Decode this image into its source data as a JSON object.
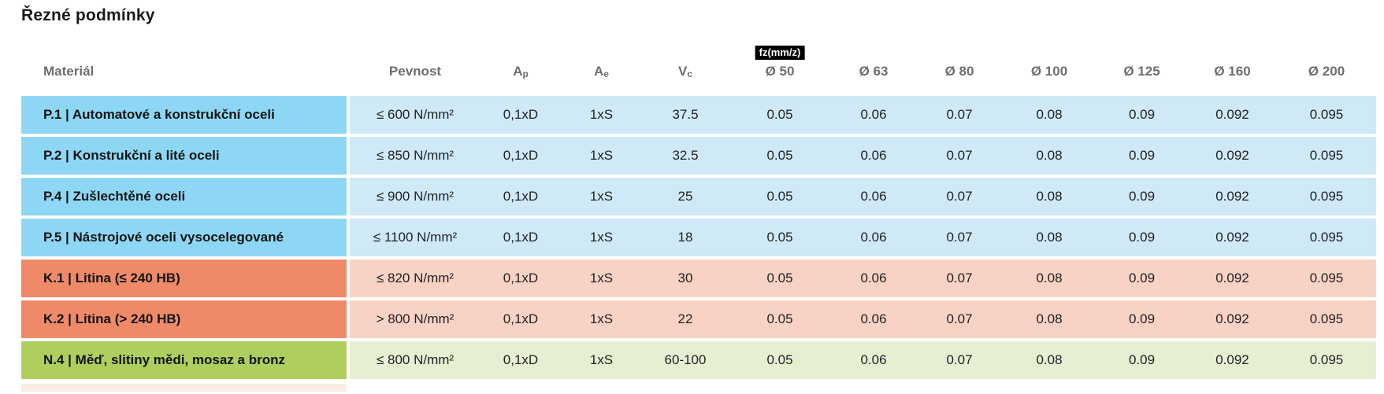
{
  "title": "Řezné podmínky",
  "colors": {
    "blue_dark": "#8ed7f4",
    "blue_light": "#cfe9f7",
    "orange_dark": "#ef8a69",
    "orange_light": "#f8d2c5",
    "green_dark": "#aecf5d",
    "green_light": "#e6efd2",
    "header_text": "#6d6e71",
    "badge_bg": "#000000",
    "badge_text": "#ffffff"
  },
  "table": {
    "badge": "fz(mm/z)",
    "columns": [
      {
        "key": "material",
        "label": "Materiál"
      },
      {
        "key": "pevnost",
        "label": "Pevnost"
      },
      {
        "key": "ap",
        "label": "A",
        "sub": "p"
      },
      {
        "key": "ae",
        "label": "A",
        "sub": "e"
      },
      {
        "key": "vc",
        "label": "V",
        "sub": "c"
      },
      {
        "key": "d50",
        "label": "Ø 50",
        "badge": true
      },
      {
        "key": "d63",
        "label": "Ø 63"
      },
      {
        "key": "d80",
        "label": "Ø 80"
      },
      {
        "key": "d100",
        "label": "Ø 100"
      },
      {
        "key": "d125",
        "label": "Ø 125"
      },
      {
        "key": "d160",
        "label": "Ø 160"
      },
      {
        "key": "d200",
        "label": "Ø 200"
      }
    ],
    "rows": [
      {
        "theme": "blue",
        "material": "P.1 | Automatové a konstrukční oceli",
        "values": [
          "≤ 600 N/mm²",
          "0,1xD",
          "1xS",
          "37.5",
          "0.05",
          "0.06",
          "0.07",
          "0.08",
          "0.09",
          "0.092",
          "0.095"
        ]
      },
      {
        "theme": "blue",
        "material": "P.2 | Konstrukční a lité oceli",
        "values": [
          "≤ 850 N/mm²",
          "0,1xD",
          "1xS",
          "32.5",
          "0.05",
          "0.06",
          "0.07",
          "0.08",
          "0.09",
          "0.092",
          "0.095"
        ]
      },
      {
        "theme": "blue",
        "material": "P.4 | Zušlechtěné oceli",
        "values": [
          "≤ 900 N/mm²",
          "0,1xD",
          "1xS",
          "25",
          "0.05",
          "0.06",
          "0.07",
          "0.08",
          "0.09",
          "0.092",
          "0.095"
        ]
      },
      {
        "theme": "blue",
        "material": "P.5 | Nástrojové oceli vysocelegované",
        "values": [
          "≤ 1100 N/mm²",
          "0,1xD",
          "1xS",
          "18",
          "0.05",
          "0.06",
          "0.07",
          "0.08",
          "0.09",
          "0.092",
          "0.095"
        ]
      },
      {
        "theme": "orange",
        "material": "K.1 | Litina (≤ 240 HB)",
        "values": [
          "≤ 820 N/mm²",
          "0,1xD",
          "1xS",
          "30",
          "0.05",
          "0.06",
          "0.07",
          "0.08",
          "0.09",
          "0.092",
          "0.095"
        ]
      },
      {
        "theme": "orange",
        "material": "K.2 | Litina (> 240 HB)",
        "values": [
          "> 800 N/mm²",
          "0,1xD",
          "1xS",
          "22",
          "0.05",
          "0.06",
          "0.07",
          "0.08",
          "0.09",
          "0.092",
          "0.095"
        ]
      },
      {
        "theme": "green",
        "material": "N.4 | Měď, slitiny mědi, mosaz a bronz",
        "values": [
          "≤ 800 N/mm²",
          "0,1xD",
          "1xS",
          "60-100",
          "0.05",
          "0.06",
          "0.07",
          "0.08",
          "0.09",
          "0.092",
          "0.095"
        ]
      }
    ]
  }
}
